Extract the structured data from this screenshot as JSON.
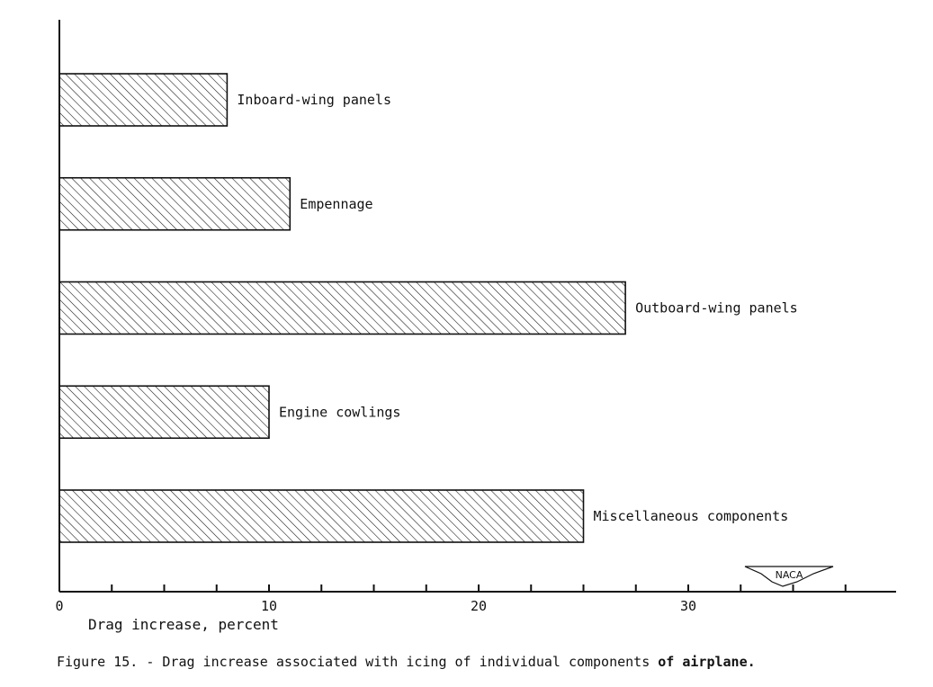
{
  "chart_data": {
    "type": "bar",
    "orientation": "horizontal",
    "categories": [
      "Inboard-wing panels",
      "Empennage",
      "Outboard-wing panels",
      "Engine cowlings",
      "Miscellaneous components"
    ],
    "values": [
      8,
      11,
      27,
      10,
      25
    ],
    "xlabel": "Drag increase, percent",
    "ylabel": "",
    "xlim": [
      0,
      40
    ],
    "x_ticks_labeled": [
      0,
      10,
      20,
      30
    ],
    "x_minor_step": 2.5,
    "bar_fill": "diagonal-hatch",
    "grid": false,
    "caption_main": "Figure 15. - Drag increase associated with icing of individual components ",
    "caption_bold": "of airplane.",
    "logo_text": "NACA",
    "colors": {
      "ink": "#111111",
      "background": "#ffffff"
    }
  }
}
